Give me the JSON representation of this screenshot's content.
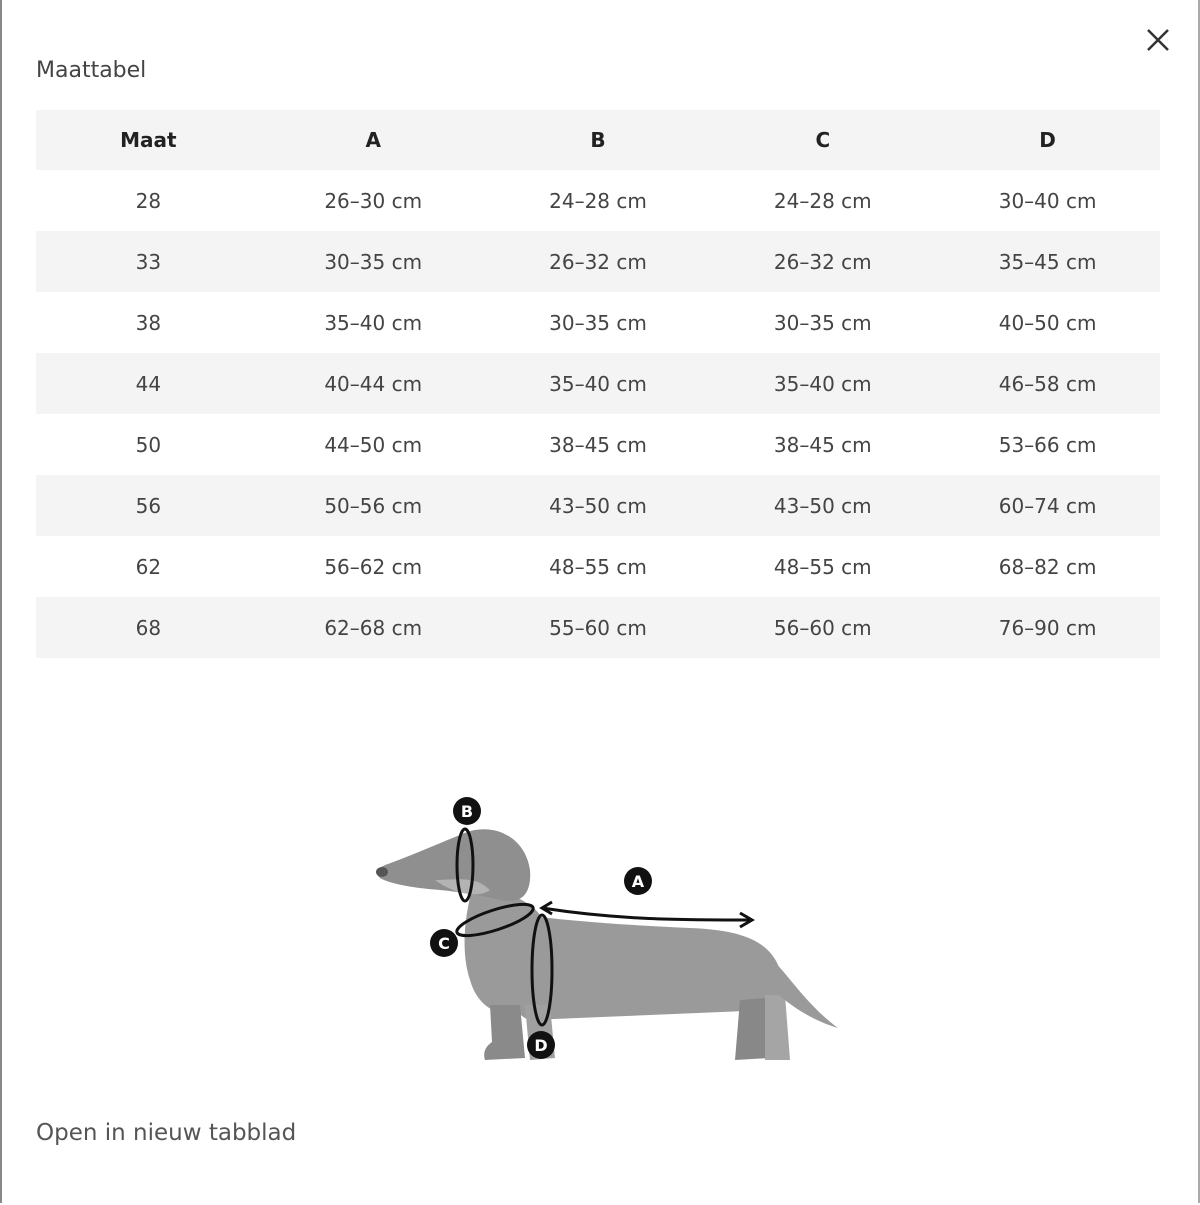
{
  "title": "Maattabel",
  "close_icon": "close-x-icon",
  "table": {
    "headers": [
      "Maat",
      "A",
      "B",
      "C",
      "D"
    ],
    "rows": [
      [
        "28",
        "26–30 cm",
        "24–28 cm",
        "24–28 cm",
        "30–40 cm"
      ],
      [
        "33",
        "30–35 cm",
        "26–32 cm",
        "26–32 cm",
        "35–45 cm"
      ],
      [
        "38",
        "35–40 cm",
        "30–35 cm",
        "30–35 cm",
        "40–50 cm"
      ],
      [
        "44",
        "40–44 cm",
        "35–40 cm",
        "35–40 cm",
        "46–58 cm"
      ],
      [
        "50",
        "44–50 cm",
        "38–45 cm",
        "38–45 cm",
        "53–66 cm"
      ],
      [
        "56",
        "50–56 cm",
        "43–50 cm",
        "43–50 cm",
        "60–74 cm"
      ],
      [
        "62",
        "56–62 cm",
        "48–55 cm",
        "48–55 cm",
        "68–82 cm"
      ],
      [
        "68",
        "62–68 cm",
        "55–60 cm",
        "56–60 cm",
        "76–90 cm"
      ]
    ]
  },
  "diagram": {
    "labels": {
      "a": "A",
      "b": "B",
      "c": "C",
      "d": "D"
    }
  },
  "open_link": "Open in nieuw tabblad",
  "colors": {
    "row_shade": "#f4f4f4",
    "dog": "#9a9a9a"
  }
}
